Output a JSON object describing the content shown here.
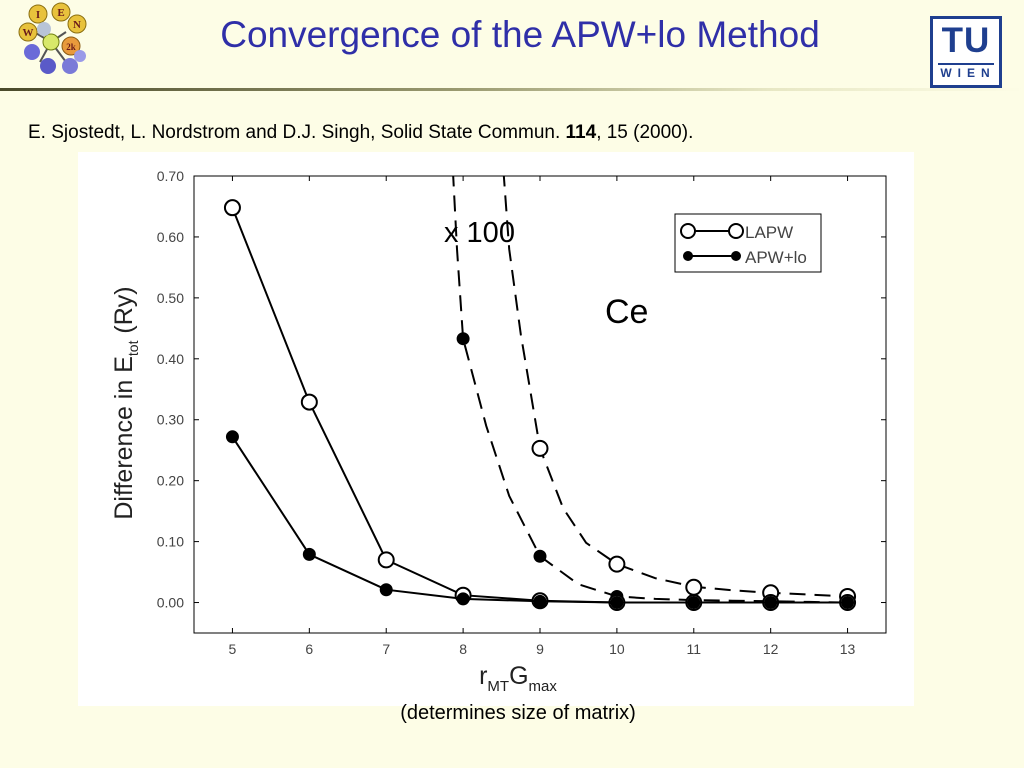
{
  "slide": {
    "title": "Convergence of the APW+lo Method"
  },
  "logos": {
    "left": {
      "letters": [
        "I",
        "E",
        "N",
        "W",
        "2k"
      ]
    },
    "right": {
      "top": "TU",
      "bottom": "WIEN",
      "color": "#1f3f8f"
    }
  },
  "citation": {
    "text_before": "E. Sjostedt, L. Nordstrom and D.J. Singh, Solid State Commun. ",
    "volume": "114",
    "text_after": ", 15 (2000)."
  },
  "caption": "(determines size of matrix)",
  "chart_data": {
    "type": "line",
    "xlabel": {
      "main": "r",
      "sub1": "MT",
      "mid": "G",
      "sub2": "max"
    },
    "ylabel": {
      "pre": "Difference in E",
      "sub": "tot",
      "post": " (Ry)"
    },
    "x_ticks": [
      "5",
      "6",
      "7",
      "8",
      "9",
      "10",
      "11",
      "12",
      "13"
    ],
    "y_ticks": [
      "0.00",
      "0.10",
      "0.20",
      "0.30",
      "0.40",
      "0.50",
      "0.60",
      "0.70"
    ],
    "xlim": [
      4.5,
      13.5
    ],
    "ylim": [
      -0.05,
      0.7
    ],
    "grid": false,
    "legend_position": "top-right",
    "annotations": {
      "scale": "x 100",
      "element": "Ce"
    },
    "series": [
      {
        "name": "LAPW",
        "marker": "open-circle",
        "line": "solid",
        "x": [
          5,
          6,
          7,
          8,
          9,
          10,
          11,
          12,
          13
        ],
        "values": [
          0.648,
          0.329,
          0.07,
          0.012,
          0.003,
          0.0,
          0.0,
          0.0,
          0.0
        ]
      },
      {
        "name": "APW+lo",
        "marker": "filled-circle",
        "line": "solid",
        "x": [
          5,
          6,
          7,
          8,
          9,
          10,
          11,
          12,
          13
        ],
        "values": [
          0.272,
          0.079,
          0.021,
          0.006,
          0.002,
          0.0,
          0.0,
          0.0,
          0.0
        ]
      },
      {
        "marker": "open-circle",
        "line": "dashed",
        "scale": 100,
        "x": [
          9,
          10,
          11,
          12,
          13
        ],
        "values": [
          0.253,
          0.063,
          0.025,
          0.016,
          0.01
        ],
        "curve_x": [
          8.5,
          8.6,
          8.75,
          9.0,
          9.3,
          9.6,
          10.0,
          10.5,
          11.0,
          11.5,
          12.0,
          12.5,
          13.0
        ],
        "curve_y": [
          0.75,
          0.58,
          0.44,
          0.253,
          0.155,
          0.098,
          0.063,
          0.04,
          0.026,
          0.02,
          0.016,
          0.013,
          0.01
        ]
      },
      {
        "marker": "filled-circle",
        "line": "dashed",
        "scale": 100,
        "x": [
          8,
          9,
          10
        ],
        "values": [
          0.433,
          0.076,
          0.01
        ],
        "curve_x": [
          7.85,
          7.92,
          8.0,
          8.3,
          8.6,
          9.0,
          9.5,
          10.0,
          10.5,
          11.0,
          11.5,
          12.0,
          12.5,
          13.0
        ],
        "curve_y": [
          0.75,
          0.58,
          0.433,
          0.29,
          0.175,
          0.076,
          0.03,
          0.01,
          0.006,
          0.004,
          0.003,
          0.002,
          0.001,
          0.0
        ]
      }
    ]
  }
}
